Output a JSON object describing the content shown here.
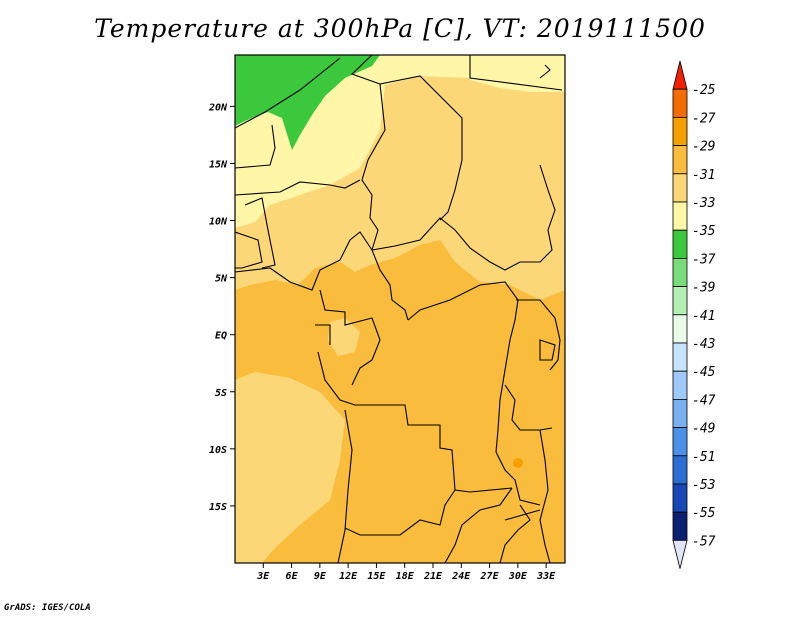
{
  "chart_data": {
    "type": "heatmap",
    "title": "Temperature at 300hPa [C], VT: 2019111500",
    "variable": "Temperature",
    "level": "300hPa",
    "units": "C",
    "valid_time": "2019111500",
    "x_range": [
      0,
      35
    ],
    "y_range": [
      -20,
      24.5
    ],
    "x_ticks": [
      {
        "value": 3,
        "label": "3E"
      },
      {
        "value": 6,
        "label": "6E"
      },
      {
        "value": 9,
        "label": "9E"
      },
      {
        "value": 12,
        "label": "12E"
      },
      {
        "value": 15,
        "label": "15E"
      },
      {
        "value": 18,
        "label": "18E"
      },
      {
        "value": 21,
        "label": "21E"
      },
      {
        "value": 24,
        "label": "24E"
      },
      {
        "value": 27,
        "label": "27E"
      },
      {
        "value": 30,
        "label": "30E"
      },
      {
        "value": 33,
        "label": "33E"
      }
    ],
    "y_ticks": [
      {
        "value": 20,
        "label": "20N"
      },
      {
        "value": 15,
        "label": "15N"
      },
      {
        "value": 10,
        "label": "10N"
      },
      {
        "value": 5,
        "label": "5N"
      },
      {
        "value": 0,
        "label": "EQ"
      },
      {
        "value": -5,
        "label": "5S"
      },
      {
        "value": -10,
        "label": "10S"
      },
      {
        "value": -15,
        "label": "15S"
      }
    ],
    "colorbar": {
      "levels": [
        "-25",
        "-27",
        "-29",
        "-31",
        "-33",
        "-35",
        "-37",
        "-39",
        "-41",
        "-43",
        "-45",
        "-47",
        "-49",
        "-51",
        "-53",
        "-55",
        "-57"
      ],
      "colors": [
        "#f02000",
        "#f46c00",
        "#f6a000",
        "#f9bc3c",
        "#fbd778",
        "#fff6a8",
        "#3cc83c",
        "#78dc78",
        "#b4f0b4",
        "#eafce8",
        "#c8e4fc",
        "#a0c8f8",
        "#78b0f0",
        "#4c90e8",
        "#2c6ed4",
        "#1848b8",
        "#0c2070",
        "#e4e4f8"
      ]
    },
    "regions": [
      {
        "name": "green-north",
        "value": -36,
        "color": "#3cc83c"
      },
      {
        "name": "pale-sahel",
        "value": -34,
        "color": "#fff6a8"
      },
      {
        "name": "light-orange-central",
        "value": -32,
        "color": "#fbd778"
      },
      {
        "name": "orange-south",
        "value": -30,
        "color": "#f9bc3c"
      },
      {
        "name": "darker-spots",
        "value": -28,
        "color": "#f6a000"
      }
    ]
  },
  "credit": "GrADS: IGES/COLA"
}
